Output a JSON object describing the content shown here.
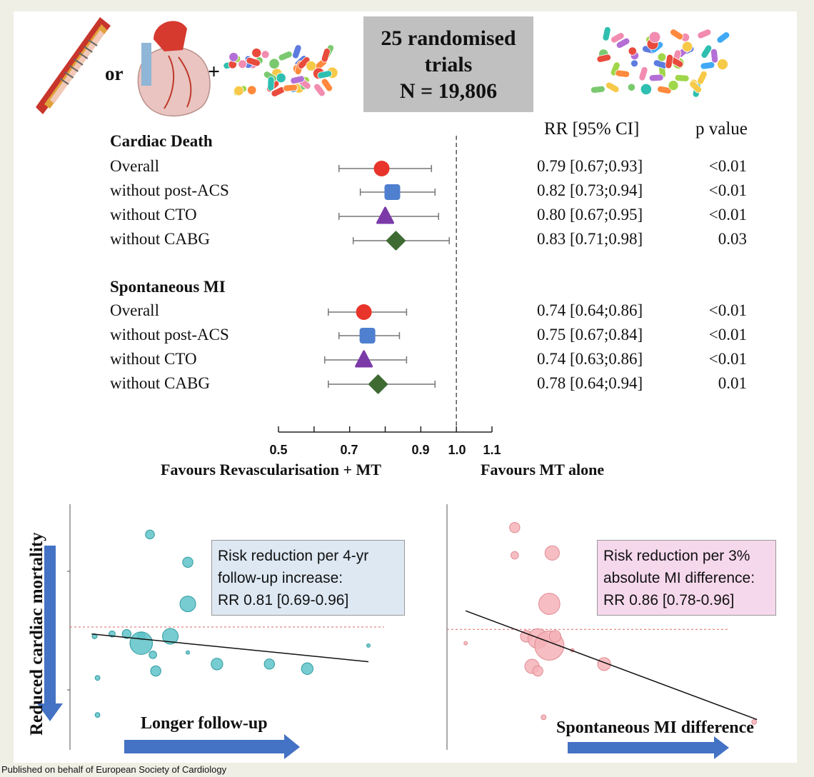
{
  "header": {
    "or_text": "or",
    "plus_text": "+",
    "banner_lines": [
      "25 randomised",
      "trials",
      "N = 19,806"
    ]
  },
  "icons": [
    "artery-stent-icon",
    "heart-icon",
    "pills-icon"
  ],
  "chart_data": [
    {
      "type": "forest",
      "columns": {
        "rr": "RR [95% CI]",
        "p": "p value"
      },
      "x_ticks": [
        "0.5",
        "0.7",
        "0.9",
        "1.0",
        "1.1"
      ],
      "xlim": [
        0.5,
        1.1
      ],
      "reference_line": 1.0,
      "favours_left": "Favours Revascularisation + MT",
      "favours_right": "Favours MT alone",
      "sections": [
        {
          "title": "Cardiac Death",
          "rows": [
            {
              "label": "Overall",
              "rr": 0.79,
              "lo": 0.67,
              "hi": 0.93,
              "rr_text": "0.79 [0.67;0.93]",
              "p_text": "<0.01",
              "color": "#e8342a",
              "marker": "circle"
            },
            {
              "label": "without post-ACS",
              "rr": 0.82,
              "lo": 0.73,
              "hi": 0.94,
              "rr_text": "0.82 [0.73;0.94]",
              "p_text": "<0.01",
              "color": "#4f7fcf",
              "marker": "square"
            },
            {
              "label": "without CTO",
              "rr": 0.8,
              "lo": 0.67,
              "hi": 0.95,
              "rr_text": "0.80 [0.67;0.95]",
              "p_text": "<0.01",
              "color": "#7b3aa8",
              "marker": "triangle"
            },
            {
              "label": "without CABG",
              "rr": 0.83,
              "lo": 0.71,
              "hi": 0.98,
              "rr_text": "0.83 [0.71;0.98]",
              "p_text": "0.03",
              "color": "#3f6b33",
              "marker": "diamond"
            }
          ]
        },
        {
          "title": "Spontaneous MI",
          "rows": [
            {
              "label": "Overall",
              "rr": 0.74,
              "lo": 0.64,
              "hi": 0.86,
              "rr_text": "0.74 [0.64;0.86]",
              "p_text": "<0.01",
              "color": "#e8342a",
              "marker": "circle"
            },
            {
              "label": "without post-ACS",
              "rr": 0.75,
              "lo": 0.67,
              "hi": 0.84,
              "rr_text": "0.75 [0.67;0.84]",
              "p_text": "<0.01",
              "color": "#4f7fcf",
              "marker": "square"
            },
            {
              "label": "without CTO",
              "rr": 0.74,
              "lo": 0.63,
              "hi": 0.86,
              "rr_text": "0.74 [0.63;0.86]",
              "p_text": "<0.01",
              "color": "#7b3aa8",
              "marker": "triangle"
            },
            {
              "label": "without CABG",
              "rr": 0.78,
              "lo": 0.64,
              "hi": 0.94,
              "rr_text": "0.78 [0.64;0.94]",
              "p_text": "0.01",
              "color": "#3f6b33",
              "marker": "diamond"
            }
          ]
        }
      ]
    },
    {
      "type": "scatter",
      "xlabel": "Longer follow-up",
      "ylabel": "Reduced cardiac mortality",
      "annotation": [
        "Risk reduction per 4-yr",
        "follow-up increase:",
        "RR  0.81 [0.69-0.96]"
      ],
      "color": "#5ec3c8",
      "xlim": [
        0,
        10
      ],
      "ylim": [
        0,
        10
      ],
      "reference_y": 5.0,
      "trend": {
        "x0": 0.5,
        "y0": 4.7,
        "x1": 10,
        "y1": 3.5
      },
      "points": [
        {
          "x": 2.5,
          "y": 9.0,
          "s": 5
        },
        {
          "x": 3.8,
          "y": 7.8,
          "s": 6
        },
        {
          "x": 3.8,
          "y": 6.0,
          "s": 10
        },
        {
          "x": 0.6,
          "y": 4.6,
          "s": 2
        },
        {
          "x": 1.2,
          "y": 4.7,
          "s": 3
        },
        {
          "x": 1.7,
          "y": 4.7,
          "s": 5
        },
        {
          "x": 2.2,
          "y": 4.6,
          "s": 4
        },
        {
          "x": 2.2,
          "y": 4.3,
          "s": 15
        },
        {
          "x": 3.2,
          "y": 4.6,
          "s": 10
        },
        {
          "x": 2.6,
          "y": 3.8,
          "s": 4
        },
        {
          "x": 3.8,
          "y": 3.9,
          "s": 1
        },
        {
          "x": 2.7,
          "y": 3.1,
          "s": 6
        },
        {
          "x": 4.8,
          "y": 3.4,
          "s": 7
        },
        {
          "x": 6.6,
          "y": 3.4,
          "s": 6
        },
        {
          "x": 7.9,
          "y": 3.2,
          "s": 7
        },
        {
          "x": 0.7,
          "y": 2.8,
          "s": 2
        },
        {
          "x": 0.7,
          "y": 1.2,
          "s": 2
        },
        {
          "x": 10,
          "y": 4.2,
          "s": 1
        }
      ]
    },
    {
      "type": "scatter",
      "xlabel": "Spontaneous MI difference",
      "ylabel": "",
      "annotation": [
        "Risk reduction per 3%",
        "absolute MI difference:",
        "RR 0.86 [0.78-0.96]"
      ],
      "color": "#f4b3b8",
      "xlim": [
        0,
        10
      ],
      "ylim": [
        0,
        10
      ],
      "reference_y": 4.9,
      "trend": {
        "x0": 0.4,
        "y0": 5.7,
        "x1": 10.5,
        "y1": 1.0
      },
      "points": [
        {
          "x": 2.1,
          "y": 9.3,
          "s": 6
        },
        {
          "x": 2.1,
          "y": 8.1,
          "s": 4
        },
        {
          "x": 3.4,
          "y": 8.2,
          "s": 9
        },
        {
          "x": 3.3,
          "y": 6.0,
          "s": 14
        },
        {
          "x": 2.5,
          "y": 4.6,
          "s": 7
        },
        {
          "x": 2.9,
          "y": 4.5,
          "s": 13
        },
        {
          "x": 3.3,
          "y": 4.2,
          "s": 20
        },
        {
          "x": 3.5,
          "y": 4.6,
          "s": 7
        },
        {
          "x": 4.1,
          "y": 4.0,
          "s": 1
        },
        {
          "x": 2.7,
          "y": 3.3,
          "s": 9
        },
        {
          "x": 2.9,
          "y": 3.1,
          "s": 6
        },
        {
          "x": 5.2,
          "y": 3.4,
          "s": 8
        },
        {
          "x": 0.4,
          "y": 4.3,
          "s": 1
        },
        {
          "x": 3.1,
          "y": 1.1,
          "s": 2
        },
        {
          "x": 10.4,
          "y": 0.9,
          "s": 2
        }
      ]
    }
  ],
  "footer": "Published on behalf of European Society of Cardiology"
}
